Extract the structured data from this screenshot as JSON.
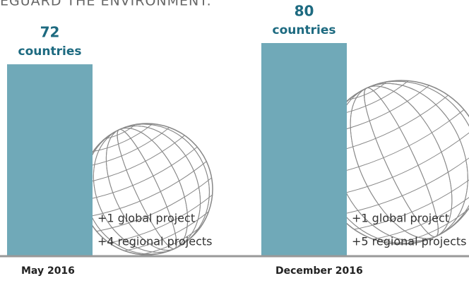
{
  "heading": "EGUARD THE ENVIRONMENT.",
  "chart_data": {
    "type": "bar",
    "categories": [
      "May 2016",
      "December 2016"
    ],
    "values": [
      72,
      80
    ],
    "value_unit": "countries",
    "annotations": [
      [
        "+1 global project",
        "+4 regional projects"
      ],
      [
        "+1 global project",
        "+5 regional projects"
      ]
    ],
    "color": "#70a9b8",
    "ylim": [
      0,
      80
    ]
  }
}
